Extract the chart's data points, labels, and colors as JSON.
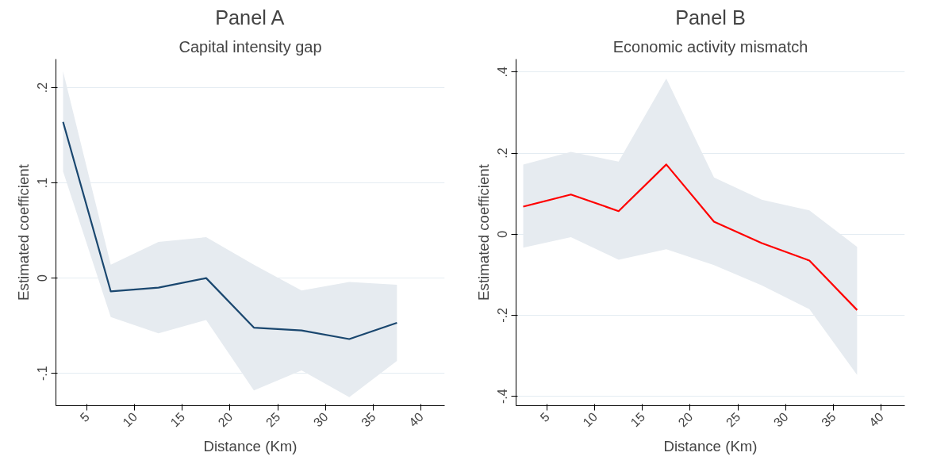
{
  "chart_data": [
    {
      "type": "line",
      "title": "Panel A",
      "subtitle": "Capital intensity gap",
      "xlabel": "Distance (Km)",
      "ylabel": "Estimated coefficient",
      "x": [
        2.5,
        7.5,
        12.5,
        17.5,
        22.5,
        27.5,
        32.5,
        37.5
      ],
      "series": [
        {
          "color": "#1a476f",
          "values": [
            0.164,
            -0.014,
            -0.01,
            0,
            -0.052,
            -0.055,
            -0.064,
            -0.047
          ],
          "lower": [
            0.112,
            -0.041,
            -0.058,
            -0.044,
            -0.118,
            -0.097,
            -0.125,
            -0.087
          ],
          "upper": [
            0.217,
            0.014,
            0.038,
            0.043,
            0.014,
            -0.013,
            -0.004,
            -0.007
          ]
        }
      ],
      "xlim": [
        1.75,
        42.5
      ],
      "ylim": [
        -0.134,
        0.23
      ],
      "xticks": [
        5,
        10,
        15,
        20,
        25,
        30,
        35,
        40
      ],
      "yticks": [
        {
          "value": -0.1,
          "label": "-.1"
        },
        0,
        {
          "value": 0.1,
          "label": ".1"
        },
        {
          "value": 0.2,
          "label": ".2"
        }
      ],
      "grid": "y",
      "marker": "none",
      "line_style": "solid"
    },
    {
      "type": "line",
      "title": "Panel B",
      "subtitle": "Economic activity mismatch",
      "xlabel": "Distance (Km)",
      "ylabel": "Estimated coefficient",
      "x": [
        2.5,
        7.5,
        12.5,
        17.5,
        22.5,
        27.5,
        32.5,
        37.5
      ],
      "series": [
        {
          "color": "#ff0000",
          "values": [
            0.068,
            0.098,
            0.057,
            0.172,
            0.031,
            -0.022,
            -0.065,
            -0.187
          ],
          "lower": [
            -0.033,
            -0.007,
            -0.063,
            -0.037,
            -0.076,
            -0.126,
            -0.185,
            -0.347
          ],
          "upper": [
            0.172,
            0.203,
            0.179,
            0.384,
            0.14,
            0.085,
            0.059,
            -0.031
          ]
        }
      ],
      "xlim": [
        1.75,
        42.5
      ],
      "ylim": [
        -0.423,
        0.432
      ],
      "xticks": [
        5,
        10,
        15,
        20,
        25,
        30,
        35,
        40
      ],
      "yticks": [
        {
          "value": -0.4,
          "label": "-.4"
        },
        {
          "value": -0.2,
          "label": "-.2"
        },
        0,
        {
          "value": 0.2,
          "label": ".2"
        },
        {
          "value": 0.4,
          "label": ".4"
        }
      ],
      "grid": "y",
      "marker": "none",
      "line_style": "solid"
    }
  ]
}
